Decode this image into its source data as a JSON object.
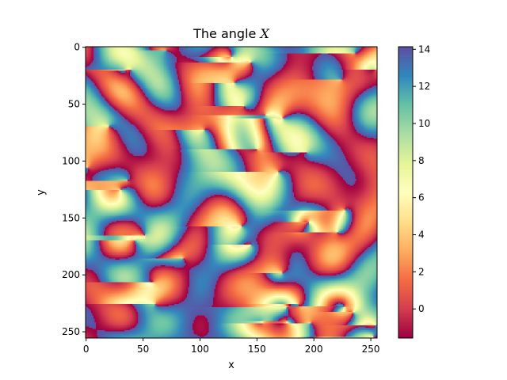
{
  "chart_data": {
    "type": "heatmap",
    "title_prefix": "The angle ",
    "title_symbol": "X",
    "xlabel": "x",
    "ylabel": "y",
    "x_range": [
      0,
      255
    ],
    "y_range": [
      0,
      255
    ],
    "y_inverted": true,
    "x_ticks": [
      0,
      50,
      100,
      150,
      200,
      250
    ],
    "y_ticks": [
      0,
      50,
      100,
      150,
      200,
      250
    ],
    "colormap": "Spectral",
    "colorbar_range": [
      -1.57,
      14.14
    ],
    "colorbar_ticks": [
      0,
      2,
      4,
      6,
      8,
      10,
      12,
      14
    ],
    "grid": false
  }
}
